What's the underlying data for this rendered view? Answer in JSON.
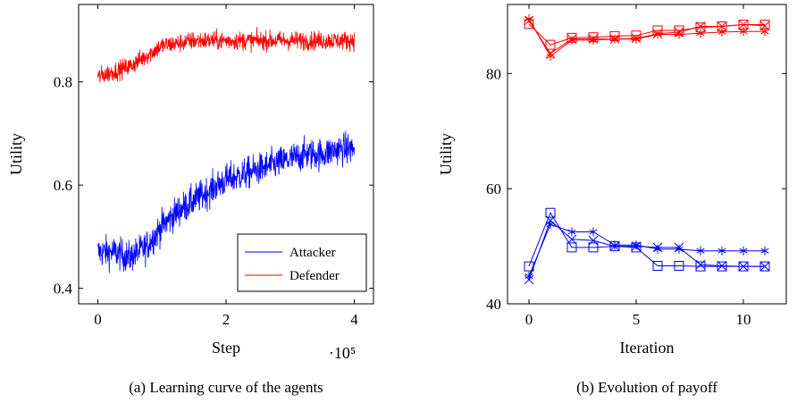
{
  "chart_data": [
    {
      "type": "line",
      "caption": "(a) Learning curve of the agents",
      "xlabel": "Step",
      "ylabel": "Utility",
      "x_multiplier_label": "·10⁵",
      "xlim": [
        -0.3,
        4.3
      ],
      "ylim": [
        0.37,
        0.95
      ],
      "xticks": [
        0,
        2,
        4
      ],
      "xtick_labels": [
        "0",
        "2",
        "4"
      ],
      "yticks": [
        0.4,
        0.6,
        0.8
      ],
      "ytick_labels": [
        "0.4",
        "0.6",
        "0.8"
      ],
      "legend_position": "bottom-right",
      "series": [
        {
          "name": "Attacker",
          "color": "#0000ff",
          "x": [
            0,
            0.25,
            0.5,
            0.75,
            1.0,
            1.25,
            1.5,
            1.75,
            2.0,
            2.25,
            2.5,
            2.75,
            3.0,
            3.25,
            3.5,
            3.75,
            4.0
          ],
          "y": [
            0.47,
            0.47,
            0.46,
            0.48,
            0.52,
            0.55,
            0.57,
            0.59,
            0.61,
            0.62,
            0.63,
            0.64,
            0.65,
            0.66,
            0.66,
            0.67,
            0.67
          ]
        },
        {
          "name": "Defender",
          "color": "#ff0000",
          "x": [
            0,
            0.25,
            0.5,
            0.75,
            1.0,
            1.25,
            1.5,
            1.75,
            2.0,
            2.25,
            2.5,
            2.75,
            3.0,
            3.25,
            3.5,
            3.75,
            4.0
          ],
          "y": [
            0.81,
            0.82,
            0.83,
            0.85,
            0.87,
            0.875,
            0.88,
            0.88,
            0.88,
            0.88,
            0.88,
            0.88,
            0.88,
            0.88,
            0.88,
            0.88,
            0.88
          ]
        }
      ]
    },
    {
      "type": "line",
      "caption": "(b) Evolution of payoff",
      "xlabel": "Iteration",
      "ylabel": "Utility",
      "xlim": [
        -1,
        12
      ],
      "ylim": [
        40,
        92
      ],
      "xticks": [
        0,
        5,
        10
      ],
      "xtick_labels": [
        "0",
        "5",
        "10"
      ],
      "yticks": [
        40,
        60,
        80
      ],
      "ytick_labels": [
        "40",
        "60",
        "80"
      ],
      "x": [
        0,
        1,
        2,
        3,
        4,
        5,
        6,
        7,
        8,
        9,
        10,
        11
      ],
      "series": [
        {
          "marker": "square",
          "color": "#0000ff",
          "values": [
            46.5,
            55.8,
            49.8,
            49.8,
            50.0,
            49.8,
            46.6,
            46.6,
            46.5,
            46.5,
            46.5,
            46.5
          ]
        },
        {
          "marker": "x",
          "color": "#0000ff",
          "values": [
            44.2,
            54.5,
            51.2,
            51.0,
            50.0,
            50.0,
            49.8,
            49.8,
            46.8,
            46.6,
            46.5,
            46.5
          ]
        },
        {
          "marker": "star",
          "color": "#0000ff",
          "values": [
            44.8,
            53.8,
            52.5,
            52.5,
            50.2,
            50.2,
            49.5,
            49.5,
            49.2,
            49.2,
            49.2,
            49.2
          ]
        },
        {
          "marker": "square",
          "color": "#ff0000",
          "values": [
            88.6,
            85.0,
            86.2,
            86.3,
            86.5,
            86.6,
            87.5,
            87.5,
            88.0,
            88.2,
            88.5,
            88.5
          ]
        },
        {
          "marker": "x",
          "color": "#ff0000",
          "values": [
            89.2,
            83.5,
            86.0,
            86.0,
            86.0,
            86.1,
            86.9,
            87.2,
            88.2,
            88.2,
            88.5,
            88.3
          ]
        },
        {
          "marker": "star",
          "color": "#ff0000",
          "values": [
            89.5,
            83.0,
            85.8,
            85.8,
            86.0,
            86.0,
            86.8,
            86.8,
            87.0,
            87.2,
            87.3,
            87.3
          ]
        }
      ]
    }
  ]
}
